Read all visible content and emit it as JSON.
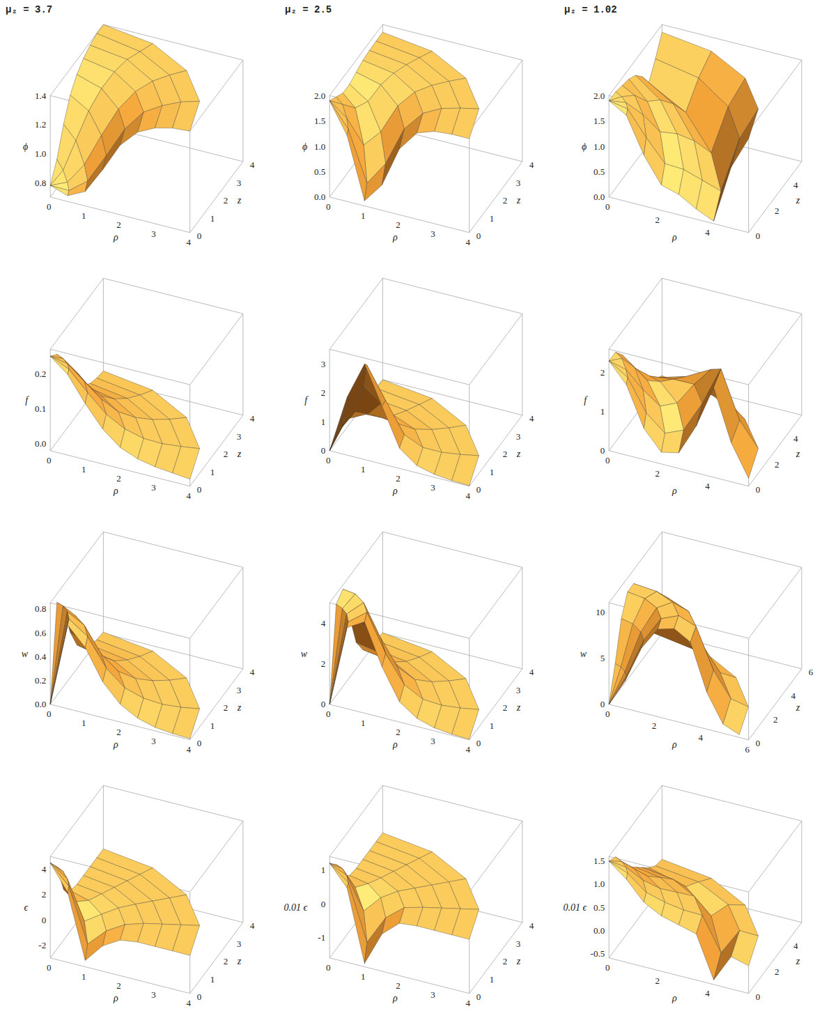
{
  "chart_data": [
    {
      "type": "surface",
      "title": "μ₂ = 3.7",
      "xlabel": "ρ",
      "ylabel": "z",
      "zlabel": "ϕ",
      "color": "#f5a53a",
      "xlim": [
        0,
        4
      ],
      "xticks": [
        0,
        1,
        2,
        3,
        4
      ],
      "ylim": [
        0,
        4
      ],
      "yticks": [
        0,
        1,
        2,
        3,
        4
      ],
      "zlim": [
        0.7,
        1.4
      ],
      "zticks": [
        0.8,
        {
          "value": 1,
          "label": "1.0"
        },
        1.2,
        1.4
      ],
      "angles": [
        0,
        22.5,
        45,
        67.5,
        90
      ],
      "r": [
        0,
        0.5,
        1,
        1.5,
        2,
        2.5,
        3,
        3.5,
        4
      ],
      "values": [
        [
          0.78,
          0.74,
          0.8,
          0.98,
          1.18,
          1.3,
          1.36,
          1.39,
          1.4
        ],
        [
          0.78,
          0.75,
          0.82,
          1.0,
          1.19,
          1.31,
          1.36,
          1.39,
          1.4
        ],
        [
          0.78,
          0.78,
          0.88,
          1.06,
          1.22,
          1.32,
          1.37,
          1.39,
          1.4
        ],
        [
          0.78,
          0.84,
          1.0,
          1.16,
          1.27,
          1.34,
          1.38,
          1.39,
          1.4
        ],
        [
          0.78,
          0.9,
          1.08,
          1.22,
          1.3,
          1.35,
          1.38,
          1.4,
          1.4
        ]
      ]
    },
    {
      "type": "surface",
      "title": "μ₂ = 2.5",
      "xlabel": "ρ",
      "ylabel": "z",
      "zlabel": "ϕ",
      "color": "#f5a53a",
      "xlim": [
        0,
        4
      ],
      "xticks": [
        0,
        1,
        2,
        3,
        4
      ],
      "ylim": [
        0,
        4
      ],
      "yticks": [
        0,
        1,
        2,
        3,
        4
      ],
      "zlim": [
        0,
        2
      ],
      "zticks": [
        {
          "value": 0,
          "label": "0.0"
        },
        0.5,
        {
          "value": 1,
          "label": "1.0"
        },
        1.5,
        {
          "value": 2,
          "label": "2.0"
        }
      ],
      "angles": [
        0,
        22.5,
        45,
        67.5,
        90
      ],
      "r": [
        0,
        0.5,
        1,
        1.5,
        2,
        2.5,
        3,
        3.5,
        4
      ],
      "values": [
        [
          1.9,
          1.3,
          0.1,
          0.5,
          1.3,
          1.7,
          1.82,
          1.85,
          1.85
        ],
        [
          1.9,
          1.35,
          0.3,
          0.7,
          1.4,
          1.72,
          1.83,
          1.85,
          1.85
        ],
        [
          1.9,
          1.5,
          0.9,
          1.1,
          1.55,
          1.76,
          1.83,
          1.85,
          1.85
        ],
        [
          1.9,
          1.7,
          1.5,
          1.5,
          1.7,
          1.8,
          1.84,
          1.85,
          1.85
        ],
        [
          1.9,
          1.8,
          1.7,
          1.7,
          1.76,
          1.82,
          1.84,
          1.85,
          1.85
        ]
      ]
    },
    {
      "type": "surface",
      "title": "μ₂ = 1.02",
      "xlabel": "ρ",
      "ylabel": "z",
      "zlabel": "ϕ",
      "color": "#f5a53a",
      "xlim": [
        0,
        5.6
      ],
      "xticks": [
        0,
        2,
        4
      ],
      "ylim": [
        0,
        5.6
      ],
      "yticks": [
        0,
        2,
        4
      ],
      "zlim": [
        0,
        2
      ],
      "zticks": [
        {
          "value": 0,
          "label": "0.0"
        },
        0.5,
        {
          "value": 1,
          "label": "1.0"
        },
        1.5,
        {
          "value": 2,
          "label": "2.0"
        }
      ],
      "angles": [
        0,
        22.5,
        45,
        67.5,
        90
      ],
      "r": [
        0,
        0.7,
        1.4,
        2.1,
        2.8,
        3.5,
        4.2,
        4.9,
        5.6
      ],
      "values": [
        [
          1.9,
          1.7,
          1.0,
          0.5,
          0.4,
          0.2,
          0.05,
          1.2,
          1.85
        ],
        [
          1.9,
          1.75,
          1.2,
          0.7,
          0.6,
          0.4,
          0.2,
          1.25,
          1.85
        ],
        [
          1.9,
          1.8,
          1.5,
          1.1,
          1.0,
          0.8,
          0.5,
          1.35,
          1.85
        ],
        [
          1.9,
          1.85,
          1.75,
          1.5,
          1.4,
          1.2,
          0.9,
          1.45,
          1.85
        ],
        [
          1.9,
          1.9,
          1.85,
          1.8,
          1.7,
          1.5,
          1.2,
          1.5,
          1.85
        ]
      ]
    },
    {
      "type": "surface",
      "xlabel": "ρ",
      "ylabel": "z",
      "zlabel": "f",
      "color": "#f5a53a",
      "xlim": [
        0,
        4
      ],
      "xticks": [
        0,
        1,
        2,
        3,
        4
      ],
      "ylim": [
        0,
        4
      ],
      "yticks": [
        0,
        1,
        2,
        3,
        4
      ],
      "zlim": [
        -0.02,
        0.27
      ],
      "zticks": [
        {
          "value": 0,
          "label": "0.0"
        },
        0.1,
        0.2
      ],
      "angles": [
        0,
        22.5,
        45,
        67.5,
        90
      ],
      "r": [
        0,
        0.5,
        1,
        1.5,
        2,
        2.5,
        3,
        3.5,
        4
      ],
      "values": [
        [
          0.25,
          0.21,
          0.14,
          0.08,
          0.04,
          0.02,
          0.01,
          0.005,
          0
        ],
        [
          0.25,
          0.215,
          0.15,
          0.09,
          0.05,
          0.025,
          0.012,
          0.006,
          0.002
        ],
        [
          0.25,
          0.22,
          0.16,
          0.1,
          0.055,
          0.03,
          0.015,
          0.007,
          0.003
        ],
        [
          0.25,
          0.225,
          0.17,
          0.11,
          0.062,
          0.035,
          0.018,
          0.009,
          0.004
        ],
        [
          0.25,
          0.23,
          0.18,
          0.12,
          0.07,
          0.04,
          0.02,
          0.01,
          0.005
        ]
      ]
    },
    {
      "type": "surface",
      "xlabel": "ρ",
      "ylabel": "z",
      "zlabel": "f",
      "color": "#f5a53a",
      "xlim": [
        0,
        4
      ],
      "xticks": [
        0,
        1,
        2,
        3,
        4
      ],
      "ylim": [
        0,
        4
      ],
      "yticks": [
        0,
        1,
        2,
        3,
        4
      ],
      "zlim": [
        0,
        3.5
      ],
      "zticks": [
        0,
        1,
        2,
        3
      ],
      "angles": [
        0,
        22.5,
        45,
        67.5,
        90
      ],
      "r": [
        0,
        0.5,
        1,
        1.5,
        2,
        2.5,
        3,
        3.5,
        4
      ],
      "values": [
        [
          0,
          2.0,
          3.3,
          2.0,
          0.7,
          0.25,
          0.1,
          0.04,
          0.02
        ],
        [
          0,
          1.8,
          3.0,
          1.8,
          0.65,
          0.23,
          0.09,
          0.04,
          0.02
        ],
        [
          0,
          1.2,
          2.0,
          1.3,
          0.5,
          0.2,
          0.08,
          0.03,
          0.01
        ],
        [
          0,
          0.6,
          0.9,
          0.6,
          0.25,
          0.1,
          0.04,
          0.02,
          0.01
        ],
        [
          0,
          0.2,
          0.3,
          0.2,
          0.1,
          0.05,
          0.02,
          0.01,
          0
        ]
      ]
    },
    {
      "type": "surface",
      "xlabel": "ρ",
      "ylabel": "z",
      "zlabel": "f",
      "color": "#f5a53a",
      "xlim": [
        0,
        5.6
      ],
      "xticks": [
        0,
        2,
        4
      ],
      "ylim": [
        0,
        5.6
      ],
      "yticks": [
        0,
        2,
        4
      ],
      "zlim": [
        0,
        2.6
      ],
      "zticks": [
        0,
        1,
        2
      ],
      "angles": [
        0,
        22.5,
        45,
        67.5,
        90
      ],
      "r": [
        0,
        0.7,
        1.4,
        2.1,
        2.8,
        3.5,
        4.2,
        4.9,
        5.6
      ],
      "values": [
        [
          2.3,
          1.8,
          0.8,
          0.3,
          0.4,
          1.2,
          2.3,
          1.0,
          0.2
        ],
        [
          2.3,
          1.9,
          1.0,
          0.5,
          0.6,
          1.3,
          2.2,
          0.9,
          0.2
        ],
        [
          2.3,
          2.0,
          1.4,
          0.9,
          0.9,
          1.3,
          1.6,
          0.7,
          0.15
        ],
        [
          2.3,
          2.2,
          1.8,
          1.3,
          1.1,
          1.0,
          0.9,
          0.4,
          0.1
        ],
        [
          2.3,
          2.3,
          2.0,
          1.6,
          1.2,
          0.8,
          0.5,
          0.25,
          0.1
        ]
      ]
    },
    {
      "type": "surface",
      "xlabel": "ρ",
      "ylabel": "z",
      "zlabel": "w",
      "color": "#f5a53a",
      "xlim": [
        0,
        4
      ],
      "xticks": [
        0,
        1,
        2,
        3,
        4
      ],
      "ylim": [
        0,
        4
      ],
      "yticks": [
        0,
        1,
        2,
        3,
        4
      ],
      "zlim": [
        0,
        0.85
      ],
      "zticks": [
        {
          "value": 0,
          "label": "0.0"
        },
        0.2,
        0.4,
        0.6,
        0.8
      ],
      "angles": [
        0,
        22.5,
        45,
        67.5,
        90
      ],
      "r": [
        0,
        0.5,
        1,
        1.5,
        2,
        2.5,
        3,
        3.5,
        4
      ],
      "values": [
        [
          0,
          0.7,
          0.55,
          0.3,
          0.15,
          0.07,
          0.03,
          0.015,
          0.01
        ],
        [
          0,
          0.72,
          0.58,
          0.32,
          0.16,
          0.08,
          0.035,
          0.016,
          0.01
        ],
        [
          0,
          0.75,
          0.61,
          0.34,
          0.17,
          0.085,
          0.04,
          0.018,
          0.01
        ],
        [
          0,
          0.77,
          0.63,
          0.36,
          0.19,
          0.09,
          0.045,
          0.02,
          0.01
        ],
        [
          0,
          0.78,
          0.65,
          0.38,
          0.2,
          0.1,
          0.05,
          0.02,
          0.01
        ]
      ]
    },
    {
      "type": "surface",
      "xlabel": "ρ",
      "ylabel": "z",
      "zlabel": "w",
      "color": "#f5a53a",
      "xlim": [
        0,
        4
      ],
      "xticks": [
        0,
        1,
        2,
        3,
        4
      ],
      "ylim": [
        0,
        4
      ],
      "yticks": [
        0,
        1,
        2,
        3,
        4
      ],
      "zlim": [
        0,
        5
      ],
      "zticks": [
        0,
        2,
        4
      ],
      "angles": [
        0,
        22.5,
        45,
        67.5,
        90
      ],
      "r": [
        0,
        0.5,
        1,
        1.5,
        2,
        2.5,
        3,
        3.5,
        4
      ],
      "values": [
        [
          0,
          4.0,
          4.5,
          2.5,
          1.0,
          0.4,
          0.15,
          0.06,
          0.02
        ],
        [
          0,
          4.1,
          4.6,
          2.6,
          1.1,
          0.42,
          0.16,
          0.06,
          0.02
        ],
        [
          0,
          4.3,
          4.7,
          2.8,
          1.2,
          0.45,
          0.18,
          0.07,
          0.03
        ],
        [
          0,
          4.4,
          4.8,
          2.9,
          1.25,
          0.48,
          0.19,
          0.08,
          0.03
        ],
        [
          0,
          4.5,
          4.8,
          3.0,
          1.3,
          0.5,
          0.2,
          0.08,
          0.03
        ]
      ]
    },
    {
      "type": "surface",
      "xlabel": "ρ",
      "ylabel": "z",
      "zlabel": "w",
      "color": "#f5a53a",
      "xlim": [
        0,
        6
      ],
      "xticks": [
        0,
        2,
        4,
        6
      ],
      "ylim": [
        0,
        6
      ],
      "yticks": [
        0,
        2,
        4,
        6
      ],
      "zlim": [
        0,
        11
      ],
      "zticks": [
        0,
        5,
        10
      ],
      "angles": [
        0,
        22.5,
        45,
        67.5,
        90
      ],
      "r": [
        0,
        0.7,
        1.4,
        2.1,
        2.8,
        3.5,
        4.2,
        4.9,
        5.6
      ],
      "values": [
        [
          0,
          3.0,
          7.0,
          9.5,
          10.0,
          9.0,
          4.0,
          1.0,
          0.3
        ],
        [
          0,
          3.1,
          7.1,
          9.5,
          9.9,
          8.8,
          4.1,
          1.1,
          0.3
        ],
        [
          0,
          3.2,
          7.2,
          9.5,
          9.8,
          8.5,
          4.2,
          1.2,
          0.35
        ],
        [
          0,
          3.4,
          7.4,
          9.5,
          9.6,
          8.2,
          4.4,
          1.4,
          0.4
        ],
        [
          0,
          3.5,
          7.5,
          9.5,
          9.5,
          8.0,
          4.5,
          1.5,
          0.4
        ]
      ]
    },
    {
      "type": "surface",
      "xlabel": "ρ",
      "ylabel": "z",
      "zlabel": "ϵ",
      "color": "#f5a53a",
      "xlim": [
        0,
        4
      ],
      "xticks": [
        0,
        1,
        2,
        3,
        4
      ],
      "ylim": [
        0,
        4
      ],
      "yticks": [
        0,
        1,
        2,
        3,
        4
      ],
      "zlim": [
        -3,
        5
      ],
      "zticks": [
        -2,
        0,
        2,
        4
      ],
      "angles": [
        0,
        22.5,
        45,
        67.5,
        90
      ],
      "r": [
        0,
        0.5,
        1,
        1.5,
        2,
        2.5,
        3,
        3.5,
        4
      ],
      "values": [
        [
          4.5,
          2.5,
          -2.5,
          -1.0,
          -0.2,
          0,
          0,
          0,
          0
        ],
        [
          4.5,
          2.7,
          -1.8,
          -0.7,
          -0.15,
          0,
          0,
          0,
          0
        ],
        [
          4.5,
          3.0,
          -0.6,
          -0.3,
          -0.05,
          0,
          0,
          0,
          0
        ],
        [
          4.5,
          3.3,
          0.4,
          0.0,
          0,
          0,
          0,
          0,
          0
        ],
        [
          4.5,
          3.5,
          1.0,
          0.2,
          0,
          0,
          0,
          0,
          0
        ]
      ]
    },
    {
      "type": "surface",
      "xlabel": "ρ",
      "ylabel": "z",
      "zlabel": "0.01 ϵ",
      "color": "#f5a53a",
      "xlim": [
        0,
        4
      ],
      "xticks": [
        0,
        1,
        2,
        3,
        4
      ],
      "ylim": [
        0,
        4
      ],
      "yticks": [
        0,
        1,
        2,
        3,
        4
      ],
      "zlim": [
        -1.6,
        1.4
      ],
      "zticks": [
        -1,
        0,
        1
      ],
      "angles": [
        0,
        22.5,
        45,
        67.5,
        90
      ],
      "r": [
        0,
        0.5,
        1,
        1.5,
        2,
        2.5,
        3,
        3.5,
        4
      ],
      "values": [
        [
          1.2,
          0.6,
          -1.5,
          -0.5,
          -0.05,
          0,
          0,
          0,
          0
        ],
        [
          1.2,
          0.65,
          -1.1,
          -0.35,
          -0.03,
          0,
          0,
          0,
          0
        ],
        [
          1.2,
          0.75,
          -0.4,
          -0.1,
          0,
          0,
          0,
          0,
          0
        ],
        [
          1.2,
          0.85,
          0.1,
          0.02,
          0,
          0,
          0,
          0,
          0
        ],
        [
          1.2,
          0.9,
          0.3,
          0.05,
          0,
          0,
          0,
          0,
          0
        ]
      ]
    },
    {
      "type": "surface",
      "xlabel": "ρ",
      "ylabel": "z",
      "zlabel": "0.01 ϵ",
      "color": "#f5a53a",
      "xlim": [
        0,
        5.6
      ],
      "xticks": [
        0,
        2,
        4
      ],
      "ylim": [
        0,
        5.6
      ],
      "yticks": [
        0,
        2,
        4
      ],
      "zlim": [
        -0.6,
        1.6
      ],
      "zticks": [
        -0.5,
        {
          "value": 0,
          "label": "0.0"
        },
        0.5,
        {
          "value": 1,
          "label": "1.0"
        },
        1.5
      ],
      "angles": [
        0,
        22.5,
        45,
        67.5,
        90
      ],
      "r": [
        0,
        0.7,
        1.4,
        2.1,
        2.8,
        3.5,
        4.2,
        4.9,
        5.6
      ],
      "values": [
        [
          1.5,
          1.2,
          0.8,
          0.6,
          0.5,
          0.4,
          -0.5,
          0.1,
          0
        ],
        [
          1.5,
          1.25,
          0.85,
          0.65,
          0.5,
          0.4,
          -0.4,
          0.1,
          0
        ],
        [
          1.5,
          1.3,
          0.95,
          0.7,
          0.55,
          0.4,
          -0.1,
          0.08,
          0
        ],
        [
          1.5,
          1.35,
          1.05,
          0.75,
          0.58,
          0.4,
          0.1,
          0.06,
          0
        ],
        [
          1.5,
          1.4,
          1.1,
          0.8,
          0.6,
          0.4,
          0.2,
          0.05,
          0
        ]
      ]
    }
  ]
}
